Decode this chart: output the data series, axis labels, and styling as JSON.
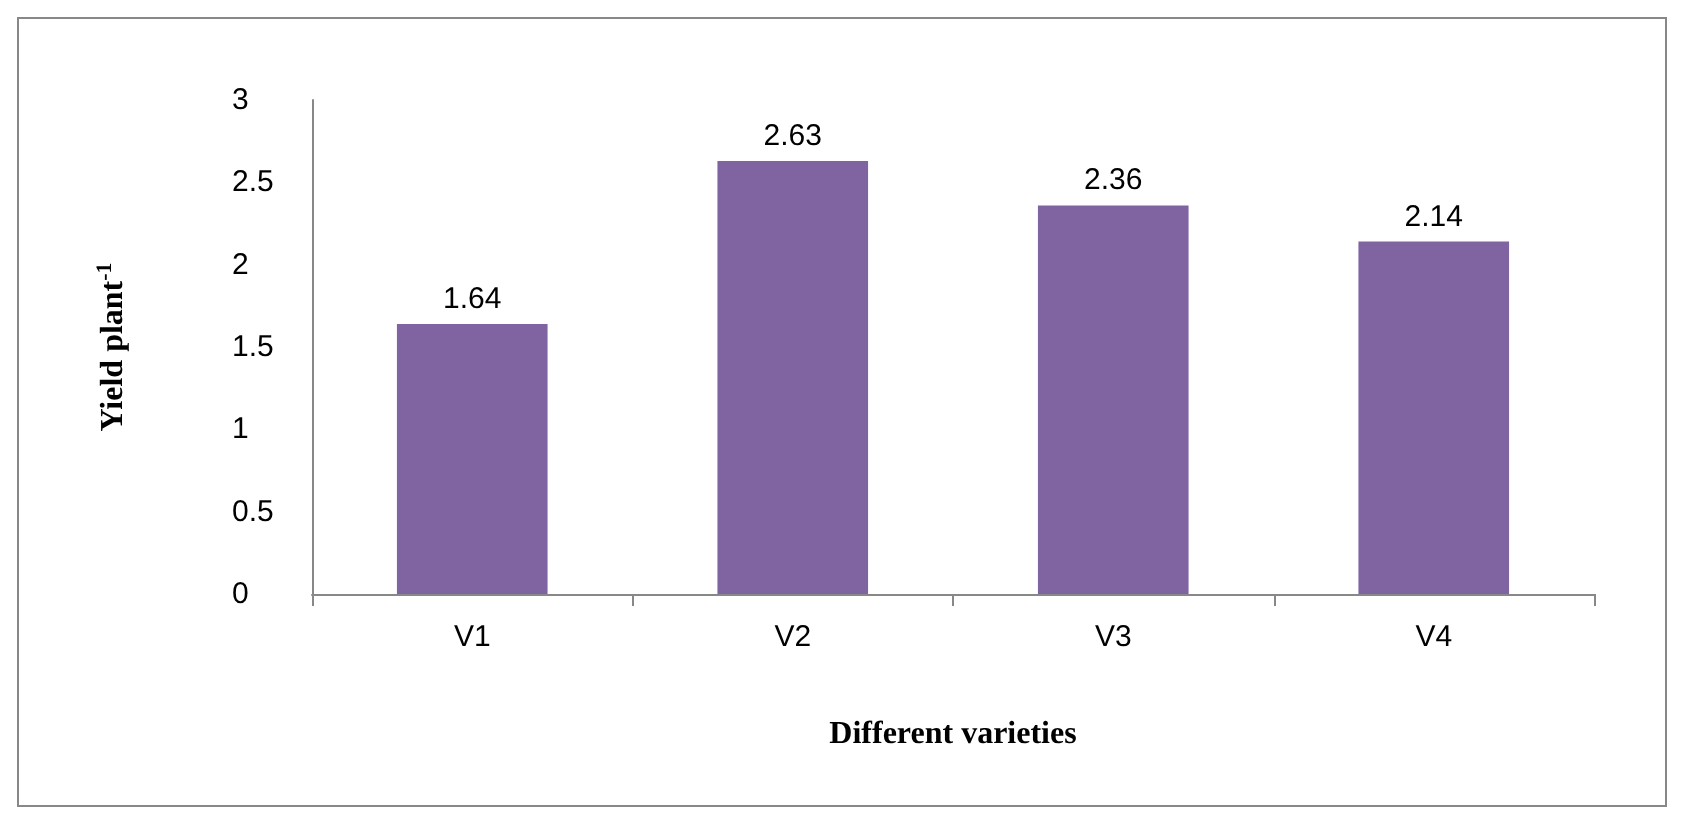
{
  "chart_data": {
    "type": "bar",
    "xlabel": "Different varieties",
    "ylabel": "Yield plant$^{-1}$",
    "categories": [
      "V1",
      "V2",
      "V3",
      "V4"
    ],
    "values": [
      1.64,
      2.63,
      2.36,
      2.14
    ],
    "color": "#8064a2",
    "ylim": [
      0,
      3
    ],
    "yticks": [
      0,
      0.5,
      1,
      1.5,
      2,
      2.5,
      3
    ],
    "grid": false,
    "data_labels": true
  }
}
